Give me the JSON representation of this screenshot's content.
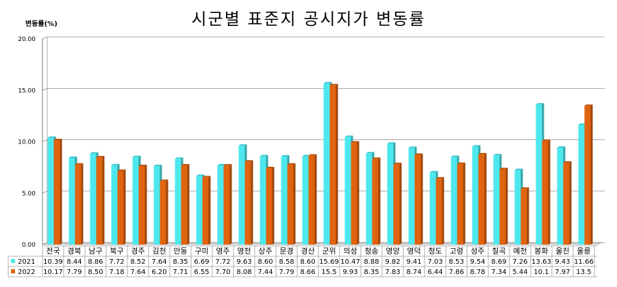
{
  "title": "시군별 표준지 공시지가 변동률",
  "ylabel": "변동률(%)",
  "chart_data": {
    "type": "bar",
    "title": "시군별 표준지 공시지가 변동률",
    "ylabel": "변동률(%)",
    "ylim": [
      0,
      20
    ],
    "yticks": [
      "0.00",
      "5.00",
      "10.00",
      "15.00",
      "20.00"
    ],
    "grid": true,
    "categories": [
      "전국",
      "경북",
      "남구",
      "북구",
      "경주",
      "김천",
      "안동",
      "구미",
      "영주",
      "영천",
      "상주",
      "문경",
      "경산",
      "군위",
      "의성",
      "청송",
      "영양",
      "영덕",
      "청도",
      "고령",
      "성주",
      "칠곡",
      "예천",
      "봉화",
      "울진",
      "울릉"
    ],
    "series": [
      {
        "name": "2021",
        "color": "#4de8ee",
        "values": [
          10.39,
          8.44,
          8.86,
          7.72,
          8.52,
          7.64,
          8.35,
          6.69,
          7.72,
          9.63,
          8.6,
          8.58,
          8.6,
          15.69,
          10.47,
          8.88,
          9.82,
          9.41,
          7.03,
          8.53,
          9.54,
          8.69,
          7.26,
          13.63,
          9.43,
          11.66
        ],
        "labels": [
          "10.39",
          "8.44",
          "8.86",
          "7.72",
          "8.52",
          "7.64",
          "8.35",
          "6.69",
          "7.72",
          "9.63",
          "8.60",
          "8.58",
          "8.60",
          "15.69",
          "10.47",
          "8.88",
          "9.82",
          "9.41",
          "7.03",
          "8.53",
          "9.54",
          "8.69",
          "7.26",
          "13.63",
          "9.43",
          "11.66"
        ]
      },
      {
        "name": "2022",
        "color": "#e0630f",
        "values": [
          10.17,
          7.79,
          8.5,
          7.18,
          7.64,
          6.2,
          7.71,
          6.55,
          7.7,
          8.08,
          7.44,
          7.79,
          8.66,
          15.5,
          9.93,
          8.35,
          7.83,
          8.74,
          6.44,
          7.86,
          8.78,
          7.34,
          5.44,
          10.1,
          7.97,
          13.5
        ],
        "labels": [
          "10.17",
          "7.79",
          "8.50",
          "7.18",
          "7.64",
          "6.20",
          "7.71",
          "6.55",
          "7.70",
          "8.08",
          "7.44",
          "7.79",
          "8.66",
          "15.5",
          "9.93",
          "8.35",
          "7.83",
          "8.74",
          "6.44",
          "7.86",
          "8.78",
          "7.34",
          "5.44",
          "10.1",
          "7.97",
          "13.5"
        ]
      }
    ]
  }
}
